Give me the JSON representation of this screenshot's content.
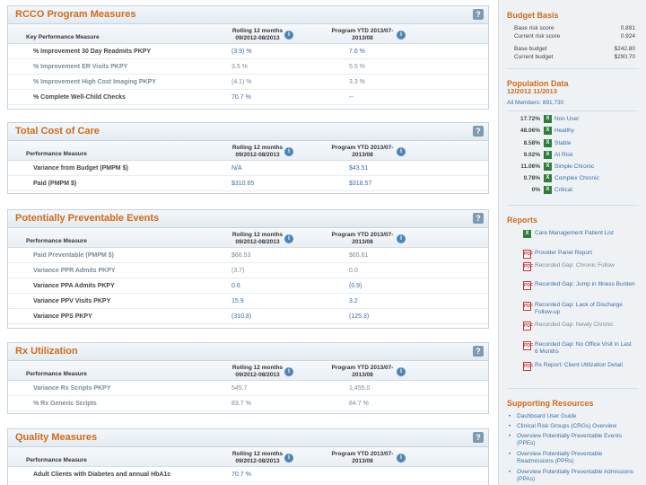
{
  "panels": {
    "rcco": {
      "title": "RCCO Program Measures",
      "col_measure": "Key Performance Measure",
      "col_rolling": "Rolling 12 months 09/2012-08/2013",
      "col_ytd": "Program YTD 2013/07-2013/08",
      "rows": [
        {
          "label": "% Improvement 30 Day Readmits PKPY",
          "rolling": "(3.9) %",
          "ytd": "7.6 %"
        },
        {
          "label": "% Improvement ER Visits PKPY",
          "rolling": "3.5 %",
          "ytd": "5.5 %"
        },
        {
          "label": "% Improvement High Cost Imaging PKPY",
          "rolling": "(4.1) %",
          "ytd": "3.3 %"
        },
        {
          "label": "% Complete Well-Child Checks",
          "rolling": "70.7 %",
          "ytd": "--"
        }
      ]
    },
    "cost": {
      "title": "Total Cost of Care",
      "col_measure": "Performance Measure",
      "col_rolling": "Rolling 12 months 09/2012-08/2013",
      "col_ytd": "Program YTD 2013/07-2013/08",
      "rows": [
        {
          "label": "Variance from Budget (PMPM $)",
          "rolling": "N/A",
          "ytd": "$43.51"
        },
        {
          "label": "Paid (PMPM $)",
          "rolling": "$310.65",
          "ytd": "$318.57"
        }
      ]
    },
    "ppe": {
      "title": "Potentially Preventable Events",
      "col_measure": "Performance Measure",
      "col_rolling": "Rolling 12 months 09/2012-08/2013",
      "col_ytd": "Program YTD 2013/07-2013/08",
      "rows": [
        {
          "label": "Paid Preventable (PMPM $)",
          "rolling": "$66.53",
          "ytd": "$65.61"
        },
        {
          "label": "Variance PPR Admits PKPY",
          "rolling": "(3.7)",
          "ytd": "0.0"
        },
        {
          "label": "Variance PPA Admits PKPY",
          "rolling": "0.6",
          "ytd": "(0.9)"
        },
        {
          "label": "Variance PPV Visits PKPY",
          "rolling": "15.9",
          "ytd": "3.2"
        },
        {
          "label": "Variance PPS PKPY",
          "rolling": "(310.8)",
          "ytd": "(125.3)"
        }
      ]
    },
    "rx": {
      "title": "Rx Utilization",
      "col_measure": "Performance Measure",
      "col_rolling": "Rolling 12 months 09/2012-08/2013",
      "col_ytd": "Program YTD 2013/07-2013/08",
      "rows": [
        {
          "label": "Variance Rx Scripts PKPY",
          "rolling": "545.7",
          "ytd": "1,455.0"
        },
        {
          "label": "% Rx Generic Scripts",
          "rolling": "83.7 %",
          "ytd": "84.7 %"
        }
      ]
    },
    "quality": {
      "title": "Quality Measures",
      "col_measure": "Performance Measure",
      "col_rolling": "Rolling 12 months 09/2012-08/2013",
      "col_ytd": "Program YTD 2013/07-2013/08",
      "rows": [
        {
          "label": "Adult Clients with Diabetes and annual HbA1c",
          "rolling": "70.7 %",
          "ytd": ""
        }
      ]
    }
  },
  "sidebar": {
    "budget": {
      "title": "Budget Basis",
      "base_risk_label": "Base risk score",
      "base_risk_value": "0.891",
      "current_risk_label": "Current risk score",
      "current_risk_value": "0.924",
      "base_budget_label": "Base budget",
      "base_budget_value": "$242.80",
      "current_budget_label": "Current budget",
      "current_budget_value": "$290.70"
    },
    "population": {
      "title": "Population Data",
      "period": "12/2012 11/2013",
      "all_members": "All Members: 891,730",
      "items": [
        {
          "pct": "17.72%",
          "name": "Non User"
        },
        {
          "pct": "48.06%",
          "name": "Healthy"
        },
        {
          "pct": "8.58%",
          "name": "Stable"
        },
        {
          "pct": "9.02%",
          "name": "At Risk"
        },
        {
          "pct": "11.06%",
          "name": "Simple Chronic"
        },
        {
          "pct": "0.78%",
          "name": "Complex Chronic"
        },
        {
          "pct": "0%",
          "name": "Critical"
        }
      ]
    },
    "reports": {
      "title": "Reports",
      "items": [
        {
          "label": "Care Management Patient List",
          "kind": "xls"
        },
        {
          "label": "Provider Panel Report",
          "kind": "pdf"
        },
        {
          "label": "Recorded Gap: Chronic Follow",
          "kind": "pdf"
        },
        {
          "label": "Recorded Gap: Jump in Illness Burden",
          "kind": "pdf"
        },
        {
          "label": "Recorded Gap: Lack of Discharge Follow-up",
          "kind": "pdf"
        },
        {
          "label": "Recorded Gap: Newly Chronic",
          "kind": "pdf"
        },
        {
          "label": "Recorded Gap: No Office Visit in Last 6 Months",
          "kind": "pdf"
        },
        {
          "label": "Rx Report: Client Utilization Detail",
          "kind": "pdf"
        }
      ]
    },
    "resources": {
      "title": "Supporting Resources",
      "items": [
        "Dashboard User Guide",
        "Clinical Risk Groups (CRGs) Overview",
        "Overview Potentially Preventable Events (PPEs)",
        "Overview Potentially Preventable Readmissions (PPRs)",
        "Overview Potentially Preventable Admissions (PPAs)"
      ]
    }
  },
  "icons": {
    "help": "?",
    "info": "i",
    "xls": "X",
    "pdf": "PDF"
  }
}
